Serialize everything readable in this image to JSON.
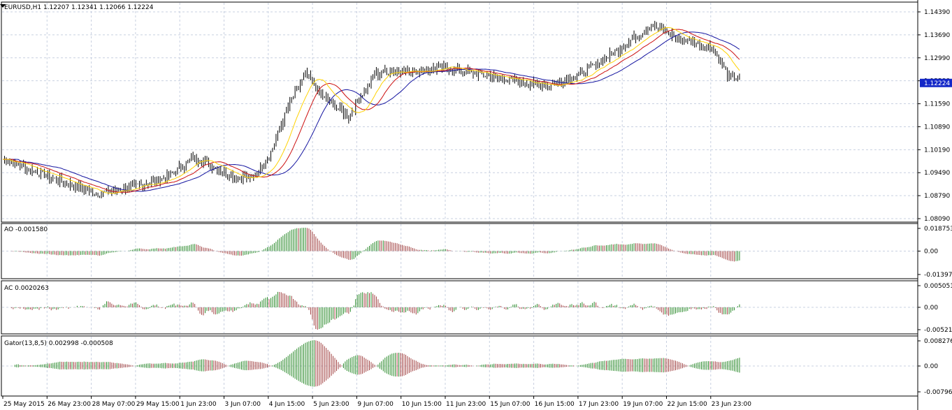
{
  "symbol_header": "EURUSD,H1  1.12207 1.12341 1.12066 1.12224",
  "current_price_label": "1.12224",
  "current_price": 1.12224,
  "colors": {
    "grid": "#c8d0e0",
    "bullish": "#2a8a2a",
    "bearish": "#a04040",
    "jaw": "#1414a0",
    "teeth": "#cc1010",
    "lips": "#ffd200",
    "price_tag_bg": "#1428c8"
  },
  "indicators": {
    "ao": {
      "label": "AO -0.001580",
      "tick_labels": [
        "0.018753",
        "0.00",
        "-0.013979"
      ]
    },
    "ac": {
      "label": "AC 0.0020263",
      "tick_labels": [
        "0.005051",
        "0.00",
        "-0.005218"
      ]
    },
    "gator": {
      "label": "Gator(13,8,5) 0.002998 -0.000508",
      "tick_labels": [
        "0.008276",
        "0.00",
        "-0.007965"
      ]
    }
  },
  "chart_data": {
    "type": "candlestick",
    "symbol": "EURUSD",
    "timeframe": "H1",
    "ohlc_header": {
      "open": 1.12207,
      "high": 1.12341,
      "low": 1.12066,
      "close": 1.12224
    },
    "price_ticks": [
      "1.14390",
      "1.13690",
      "1.12990",
      "1.12290",
      "1.11590",
      "1.10890",
      "1.10190",
      "1.09490",
      "1.08790",
      "1.08090"
    ],
    "ylim": [
      1.0809,
      1.1439
    ],
    "x_tick_labels": [
      "25 May 2015",
      "26 May 23:00",
      "28 May 07:00",
      "29 May 15:00",
      "1 Jun 23:00",
      "3 Jun 07:00",
      "4 Jun 15:00",
      "5 Jun 23:00",
      "9 Jun 07:00",
      "10 Jun 15:00",
      "11 Jun 23:00",
      "15 Jun 07:00",
      "16 Jun 15:00",
      "17 Jun 23:00",
      "19 Jun 07:00",
      "22 Jun 15:00",
      "23 Jun 23:00"
    ],
    "approx_close_path": [
      [
        0,
        1.099
      ],
      [
        30,
        1.093
      ],
      [
        55,
        1.0885
      ],
      [
        75,
        1.0905
      ],
      [
        95,
        1.0935
      ],
      [
        110,
        1.0995
      ],
      [
        125,
        1.096
      ],
      [
        135,
        1.0935
      ],
      [
        145,
        1.0935
      ],
      [
        155,
        1.101
      ],
      [
        165,
        1.115
      ],
      [
        175,
        1.125
      ],
      [
        185,
        1.118
      ],
      [
        200,
        1.112
      ],
      [
        215,
        1.125
      ],
      [
        225,
        1.126
      ],
      [
        240,
        1.126
      ],
      [
        255,
        1.127
      ],
      [
        275,
        1.125
      ],
      [
        295,
        1.123
      ],
      [
        315,
        1.1215
      ],
      [
        335,
        1.125
      ],
      [
        360,
        1.134
      ],
      [
        375,
        1.14
      ],
      [
        390,
        1.136
      ],
      [
        410,
        1.133
      ],
      [
        420,
        1.124
      ],
      [
        426,
        1.124
      ]
    ],
    "grid": true
  }
}
